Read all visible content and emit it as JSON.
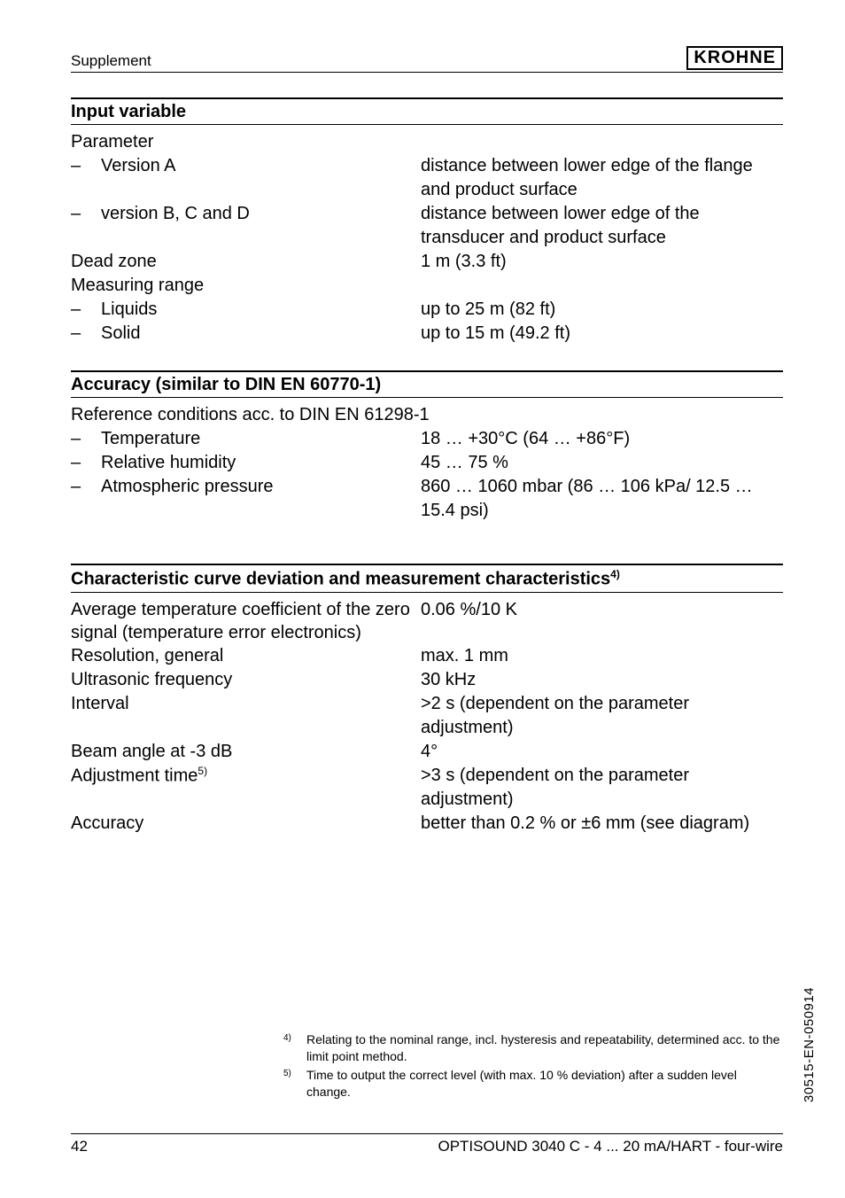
{
  "header": {
    "supplement": "Supplement",
    "brand": "KROHNE"
  },
  "sections": {
    "input_variable": {
      "title": "Input variable",
      "parameter_label": "Parameter",
      "items": [
        {
          "label": "Version A",
          "value": "distance between lower edge of the flange and product surface"
        },
        {
          "label": "version B, C and D",
          "value": "distance between lower edge of the transducer and product surface"
        }
      ],
      "dead_zone_label": "Dead zone",
      "dead_zone_value": "1 m (3.3 ft)",
      "measuring_range_label": "Measuring range",
      "range_items": [
        {
          "label": "Liquids",
          "value": "up to 25 m (82 ft)"
        },
        {
          "label": "Solid",
          "value": "up to 15 m (49.2 ft)"
        }
      ]
    },
    "accuracy": {
      "title": "Accuracy (similar to DIN EN 60770-1)",
      "ref_label": "Reference conditions acc. to DIN EN 61298-1",
      "items": [
        {
          "label": "Temperature",
          "value": "18 … +30°C (64 … +86°F)"
        },
        {
          "label": "Relative humidity",
          "value": "45 … 75 %"
        },
        {
          "label": "Atmospheric pressure",
          "value": "860 … 1060 mbar (86 … 106 kPa/ 12.5 … 15.4 psi)"
        }
      ]
    },
    "characteristic": {
      "title_pre": "Characteristic curve deviation and measurement characteristics",
      "title_sup": "4)",
      "rows": [
        {
          "label": "Average temperature coefficient of the zero signal (temperature error electronics)",
          "value": "0.06 %/10 K"
        },
        {
          "label": "Resolution, general",
          "value": "max. 1 mm"
        },
        {
          "label": "Ultrasonic frequency",
          "value": "30 kHz"
        },
        {
          "label": "Interval",
          "value": ">2 s (dependent on the parameter adjustment)"
        },
        {
          "label": "Beam angle at -3 dB",
          "value": "4°"
        }
      ],
      "adj_label": "Adjustment time",
      "adj_sup": "5)",
      "adj_value": ">3 s (dependent on the parameter adjustment)",
      "acc_label": "Accuracy",
      "acc_value": "better than 0.2 % or ±6 mm (see diagram)"
    }
  },
  "footnotes": [
    {
      "num": "4)",
      "text": "Relating to the nominal range, incl. hysteresis and repeatability, determined acc. to the limit point method."
    },
    {
      "num": "5)",
      "text": "Time to output the correct level (with max. 10 % deviation) after a sudden level change."
    }
  ],
  "footer": {
    "page_num": "42",
    "doc_title": "OPTISOUND 3040 C - 4 ... 20 mA/HART - four-wire"
  },
  "side_code": "30515-EN-050914"
}
